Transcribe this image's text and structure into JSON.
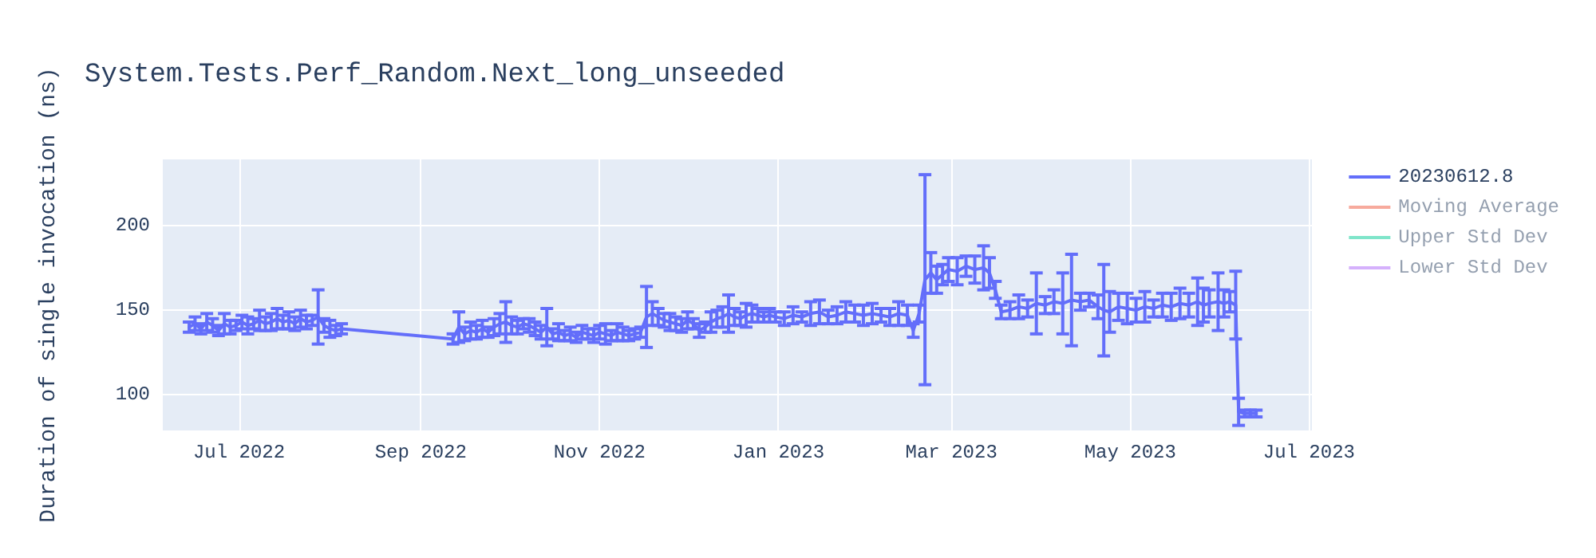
{
  "chart_data": {
    "type": "line",
    "title": "System.Tests.Perf_Random.Next_long_unseeded",
    "ylabel": "Duration of single invocation (ns)",
    "xlim": [
      "2022-06-05",
      "2023-07-02"
    ],
    "xticks": [
      {
        "value": "2022-07-01",
        "label": "Jul 2022"
      },
      {
        "value": "2022-09-01",
        "label": "Sep 2022"
      },
      {
        "value": "2022-11-01",
        "label": "Nov 2022"
      },
      {
        "value": "2023-01-01",
        "label": "Jan 2023"
      },
      {
        "value": "2023-03-01",
        "label": "Mar 2023"
      },
      {
        "value": "2023-05-01",
        "label": "May 2023"
      },
      {
        "value": "2023-07-01",
        "label": "Jul 2023"
      }
    ],
    "ylim": [
      79,
      239
    ],
    "yticks": [
      100,
      150,
      200
    ],
    "grid": true,
    "legend": "top right",
    "series": [
      {
        "name": "20230612.8",
        "color": "#636efa",
        "x": [
          "2022-06-14",
          "2022-06-16",
          "2022-06-18",
          "2022-06-20",
          "2022-06-22",
          "2022-06-24",
          "2022-06-26",
          "2022-06-28",
          "2022-06-30",
          "2022-07-02",
          "2022-07-04",
          "2022-07-06",
          "2022-07-08",
          "2022-07-10",
          "2022-07-12",
          "2022-07-14",
          "2022-07-16",
          "2022-07-18",
          "2022-07-20",
          "2022-07-22",
          "2022-07-24",
          "2022-07-26",
          "2022-07-28",
          "2022-07-30",
          "2022-08-01",
          "2022-08-03",
          "2022-08-05",
          "2022-09-12",
          "2022-09-14",
          "2022-09-16",
          "2022-09-18",
          "2022-09-20",
          "2022-09-22",
          "2022-09-24",
          "2022-09-26",
          "2022-09-28",
          "2022-09-30",
          "2022-10-02",
          "2022-10-04",
          "2022-10-06",
          "2022-10-08",
          "2022-10-10",
          "2022-10-12",
          "2022-10-14",
          "2022-10-16",
          "2022-10-18",
          "2022-10-20",
          "2022-10-22",
          "2022-10-24",
          "2022-10-26",
          "2022-10-28",
          "2022-10-30",
          "2022-11-01",
          "2022-11-03",
          "2022-11-05",
          "2022-11-07",
          "2022-11-09",
          "2022-11-11",
          "2022-11-13",
          "2022-11-15",
          "2022-11-17",
          "2022-11-19",
          "2022-11-21",
          "2022-11-23",
          "2022-11-25",
          "2022-11-27",
          "2022-11-29",
          "2022-12-01",
          "2022-12-03",
          "2022-12-05",
          "2022-12-07",
          "2022-12-09",
          "2022-12-11",
          "2022-12-13",
          "2022-12-15",
          "2022-12-17",
          "2022-12-19",
          "2022-12-21",
          "2022-12-23",
          "2022-12-25",
          "2022-12-27",
          "2022-12-29",
          "2022-12-31",
          "2023-01-03",
          "2023-01-06",
          "2023-01-09",
          "2023-01-12",
          "2023-01-15",
          "2023-01-18",
          "2023-01-21",
          "2023-01-24",
          "2023-01-27",
          "2023-01-30",
          "2023-02-02",
          "2023-02-05",
          "2023-02-08",
          "2023-02-11",
          "2023-02-14",
          "2023-02-16",
          "2023-02-18",
          "2023-02-20",
          "2023-02-22",
          "2023-02-24",
          "2023-02-26",
          "2023-02-28",
          "2023-03-03",
          "2023-03-06",
          "2023-03-09",
          "2023-03-12",
          "2023-03-14",
          "2023-03-16",
          "2023-03-18",
          "2023-03-21",
          "2023-03-24",
          "2023-03-27",
          "2023-03-30",
          "2023-04-02",
          "2023-04-05",
          "2023-04-08",
          "2023-04-11",
          "2023-04-14",
          "2023-04-17",
          "2023-04-20",
          "2023-04-22",
          "2023-04-24",
          "2023-04-27",
          "2023-04-30",
          "2023-05-03",
          "2023-05-06",
          "2023-05-09",
          "2023-05-12",
          "2023-05-15",
          "2023-05-18",
          "2023-05-21",
          "2023-05-24",
          "2023-05-26",
          "2023-05-28",
          "2023-05-31",
          "2023-06-02",
          "2023-06-04",
          "2023-06-06",
          "2023-06-07",
          "2023-06-09",
          "2023-06-11",
          "2023-06-13"
        ],
        "values": [
          140,
          142,
          139,
          143,
          141,
          138,
          142,
          140,
          141,
          143,
          141,
          142,
          144,
          142,
          143,
          145,
          143,
          144,
          142,
          145,
          143,
          144,
          146,
          141,
          139,
          138,
          139,
          133,
          140,
          136,
          138,
          137,
          139,
          137,
          140,
          142,
          143,
          141,
          140,
          142,
          141,
          139,
          137,
          140,
          136,
          137,
          135,
          136,
          134,
          137,
          136,
          135,
          137,
          136,
          135,
          137,
          136,
          135,
          136,
          137,
          146,
          148,
          146,
          144,
          143,
          142,
          141,
          144,
          142,
          138,
          140,
          143,
          145,
          146,
          148,
          146,
          145,
          147,
          148,
          147,
          146,
          147,
          146,
          145,
          147,
          146,
          148,
          149,
          146,
          147,
          149,
          148,
          147,
          148,
          147,
          146,
          148,
          147,
          138,
          148,
          168,
          172,
          168,
          171,
          174,
          173,
          176,
          174,
          175,
          172,
          162,
          149,
          150,
          152,
          151,
          154,
          153,
          155,
          154,
          156,
          155,
          156,
          152,
          150,
          149,
          152,
          151,
          150,
          152,
          151,
          153,
          152,
          154,
          153,
          155,
          153,
          154,
          155,
          154,
          155,
          153,
          90,
          89,
          89,
          89
        ],
        "errors": [
          3,
          4,
          3,
          5,
          4,
          3,
          6,
          4,
          3,
          4,
          5,
          3,
          6,
          4,
          5,
          6,
          4,
          5,
          4,
          5,
          4,
          3,
          16,
          4,
          5,
          3,
          3,
          3,
          9,
          4,
          5,
          4,
          5,
          3,
          5,
          6,
          12,
          5,
          4,
          3,
          4,
          4,
          4,
          11,
          3,
          5,
          3,
          4,
          3,
          4,
          3,
          4,
          4,
          6,
          3,
          5,
          4,
          3,
          3,
          3,
          18,
          7,
          5,
          4,
          5,
          4,
          4,
          5,
          3,
          4,
          3,
          6,
          5,
          6,
          11,
          5,
          4,
          7,
          5,
          4,
          3,
          4,
          3,
          4,
          5,
          3,
          7,
          7,
          4,
          5,
          6,
          5,
          6,
          6,
          4,
          5,
          7,
          6,
          4,
          5,
          62,
          12,
          8,
          6,
          7,
          8,
          6,
          8,
          13,
          9,
          5,
          4,
          5,
          7,
          5,
          18,
          5,
          7,
          18,
          27,
          5,
          4,
          7,
          27,
          12,
          8,
          9,
          7,
          9,
          5,
          7,
          8,
          9,
          7,
          14,
          10,
          8,
          17,
          8,
          6,
          20,
          8,
          2,
          2,
          2
        ]
      },
      {
        "name": "Moving Average",
        "color": "#ef553b"
      },
      {
        "name": "Upper Std Dev",
        "color": "#00cc96"
      },
      {
        "name": "Lower Std Dev",
        "color": "#ab63fa"
      }
    ]
  }
}
